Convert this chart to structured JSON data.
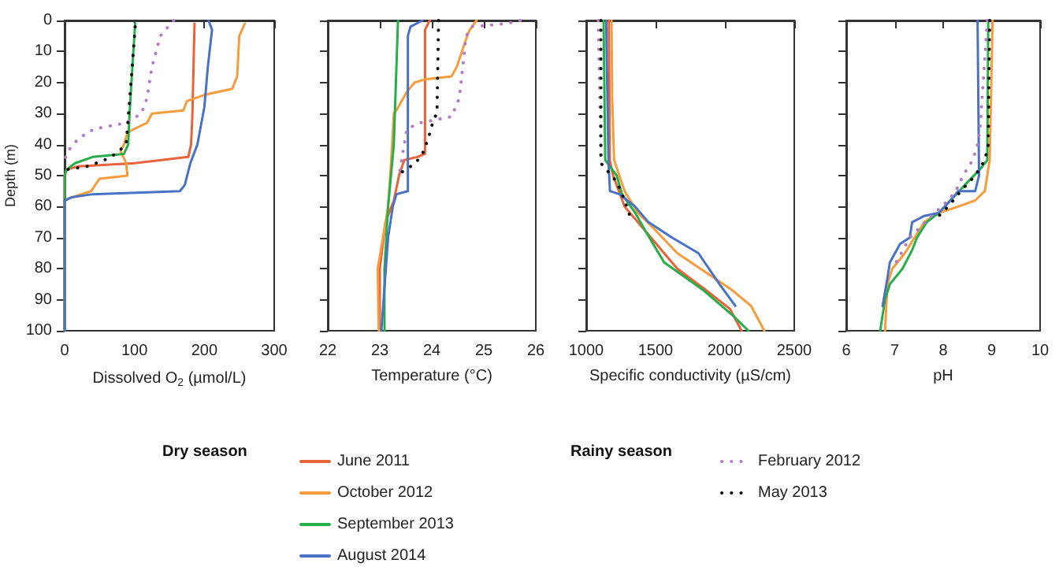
{
  "chart_data": [
    {
      "type": "line",
      "xlabel": "Dissolved O$_{2}$ (µmol/L)",
      "ylabel": "Depth (m)",
      "xlim": [
        0,
        300
      ],
      "xticks": [
        0,
        100,
        200,
        300
      ],
      "ylim": [
        100,
        0
      ],
      "yticks": [
        0,
        10,
        20,
        30,
        40,
        50,
        60,
        70,
        80,
        90,
        100
      ],
      "legend": "bottom",
      "annotations": [
        "Dry season",
        "Rainy season"
      ],
      "series": [
        {
          "name": "June 2011",
          "color": "#e8623a",
          "x": [
            186,
            185,
            183,
            181,
            177,
            100,
            20,
            3,
            0,
            0
          ],
          "values": [
            1,
            10,
            30,
            40,
            44,
            46,
            47,
            48,
            50,
            100
          ]
        },
        {
          "name": "October 2012",
          "color": "#f59c3c",
          "x": [
            258,
            250,
            247,
            240,
            200,
            175,
            170,
            125,
            118,
            90,
            85,
            80,
            88,
            90,
            50,
            38,
            10,
            0,
            0
          ],
          "values": [
            1,
            5,
            18,
            22,
            24,
            26,
            29,
            30,
            33,
            36,
            40,
            42,
            46,
            50,
            51,
            55,
            57,
            58,
            100
          ]
        },
        {
          "name": "September 2013",
          "color": "#27ae4a",
          "x": [
            101,
            97,
            93,
            91,
            85,
            40,
            15,
            3,
            0,
            0
          ],
          "values": [
            1,
            15,
            30,
            40,
            43,
            44,
            46,
            48,
            50,
            100
          ]
        },
        {
          "name": "August 2014",
          "color": "#4a72c4",
          "x": [
            206,
            211,
            205,
            200,
            190,
            180,
            172,
            165,
            40,
            10,
            0,
            0
          ],
          "values": [
            0,
            3,
            15,
            28,
            40,
            46,
            53,
            55,
            56,
            57,
            58,
            100
          ]
        },
        {
          "name": "February 2012",
          "color": "#b07cc6",
          "line_style": "dotted",
          "x": [
            156,
            137,
            125,
            118,
            110,
            88,
            42,
            20,
            5,
            0
          ],
          "values": [
            0,
            5,
            15,
            25,
            30,
            33,
            35,
            38,
            42,
            45
          ]
        },
        {
          "name": "May 2013",
          "color": "#111111",
          "line_style": "dotted",
          "x": [
            101,
            95,
            88,
            73,
            57,
            33,
            5
          ],
          "values": [
            2,
            20,
            40,
            43,
            45,
            47,
            48
          ]
        }
      ]
    },
    {
      "type": "line",
      "xlabel": "Temperature (°C)",
      "xlim": [
        22,
        26
      ],
      "xticks": [
        22,
        23,
        24,
        25,
        26
      ],
      "ylim": [
        100,
        0
      ],
      "yticks": [
        0,
        10,
        20,
        30,
        40,
        50,
        60,
        70,
        80,
        90,
        100
      ],
      "tick_labels": "x",
      "series": [
        {
          "color": "#e8623a",
          "x": [
            23.96,
            23.87,
            23.87,
            23.72,
            23.47,
            23.37,
            23.27,
            23.11,
            23.0,
            23.0
          ],
          "values": [
            0,
            3,
            43,
            44,
            45,
            50,
            58,
            65,
            80,
            100
          ]
        },
        {
          "color": "#f59c3c",
          "x": [
            24.86,
            24.73,
            24.68,
            24.48,
            24.38,
            23.87,
            23.67,
            23.52,
            23.32,
            23.27,
            23.22,
            23.16,
            22.96,
            22.98
          ],
          "values": [
            0,
            3,
            5,
            15,
            18,
            19,
            20,
            23,
            29,
            30,
            45,
            60,
            80,
            100
          ]
        },
        {
          "color": "#27ae4a",
          "x": [
            23.35,
            23.27,
            23.16,
            23.09,
            23.09
          ],
          "values": [
            0,
            40,
            60,
            80,
            100
          ]
        },
        {
          "color": "#4a72c4",
          "x": [
            23.82,
            23.59,
            23.54,
            23.54,
            23.32,
            23.25,
            23.16,
            23.03
          ],
          "values": [
            0,
            2,
            5,
            55,
            56,
            60,
            70,
            100
          ]
        },
        {
          "color": "#b07cc6",
          "line_style": "dotted",
          "x": [
            25.7,
            25.44,
            24.78,
            24.66,
            24.53,
            24.38,
            23.77,
            23.52,
            23.47,
            23.37
          ],
          "values": [
            0,
            1,
            2,
            5,
            25,
            31,
            33,
            35,
            40,
            50
          ]
        },
        {
          "color": "#111111",
          "line_style": "dotted",
          "x": [
            24.13,
            24.1,
            24.03,
            23.97,
            23.85,
            23.69,
            23.32
          ],
          "values": [
            0,
            30,
            32,
            36,
            42,
            46,
            50
          ]
        }
      ]
    },
    {
      "type": "line",
      "xlabel": "Specific conductivity (µS/cm)",
      "xlim": [
        1000,
        2500
      ],
      "xticks": [
        1000,
        1500,
        2000,
        2500
      ],
      "ylim": [
        100,
        0
      ],
      "yticks": [
        0,
        10,
        20,
        30,
        40,
        50,
        60,
        70,
        80,
        90,
        100
      ],
      "tick_labels": "x",
      "series": [
        {
          "color": "#e8623a",
          "x": [
            1163,
            1170,
            1194,
            1277,
            1467,
            1657,
            1866,
            2037,
            2120
          ],
          "values": [
            0,
            45,
            50,
            60,
            70,
            80,
            87,
            93,
            100
          ]
        },
        {
          "color": "#f59c3c",
          "x": [
            1182,
            1187,
            1201,
            1277,
            1372,
            1486,
            1657,
            1923,
            2055,
            2189,
            2284
          ],
          "values": [
            0,
            25,
            45,
            55,
            62,
            67,
            75,
            83,
            87,
            92,
            100
          ]
        },
        {
          "color": "#27ae4a",
          "x": [
            1125,
            1137,
            1220,
            1258,
            1353,
            1429,
            1562,
            1847,
            2055,
            2170
          ],
          "values": [
            0,
            45,
            50,
            56,
            62,
            68,
            78,
            87,
            95,
            100
          ]
        },
        {
          "color": "#4a72c4",
          "x": [
            1144,
            1160,
            1171,
            1239,
            1353,
            1448,
            1619,
            1809,
            1961,
            2075
          ],
          "values": [
            0,
            45,
            55,
            56,
            60,
            65,
            70,
            75,
            85,
            92
          ]
        },
        {
          "color": "#b07cc6",
          "line_style": "dotted",
          "x": [
            1087,
            1106
          ],
          "values": [
            0,
            45
          ]
        },
        {
          "color": "#111111",
          "line_style": "dotted",
          "x": [
            1106,
            1106,
            1220,
            1277,
            1315
          ],
          "values": [
            0,
            46,
            52,
            58,
            63
          ]
        }
      ]
    },
    {
      "type": "line",
      "xlabel": "pH",
      "xlim": [
        6,
        10
      ],
      "xticks": [
        6,
        7,
        8,
        9,
        10
      ],
      "ylim": [
        100,
        0
      ],
      "yticks": [
        0,
        10,
        20,
        30,
        40,
        50,
        60,
        70,
        80,
        90,
        100
      ],
      "tick_labels": "x",
      "series": [
        {
          "color": "#f59c3c",
          "x": [
            9.02,
            8.96,
            8.86,
            8.66,
            8.31,
            7.91,
            7.61,
            7.41,
            7.21,
            6.95,
            6.85,
            6.8
          ],
          "values": [
            0,
            45,
            55,
            58,
            60,
            62,
            65,
            70,
            75,
            80,
            85,
            100
          ]
        },
        {
          "color": "#27ae4a",
          "x": [
            8.93,
            8.91,
            8.76,
            8.51,
            8.21,
            7.91,
            7.66,
            7.46,
            7.36,
            7.16,
            6.9,
            6.8,
            6.7
          ],
          "values": [
            0,
            45,
            48,
            52,
            57,
            62,
            65,
            70,
            74,
            80,
            85,
            90,
            100
          ]
        },
        {
          "color": "#4a72c4",
          "x": [
            8.71,
            8.74,
            8.66,
            8.31,
            8.21,
            7.91,
            7.61,
            7.36,
            7.31,
            7.11,
            6.9,
            6.85,
            6.75
          ],
          "values": [
            0,
            50,
            55,
            55,
            57,
            62,
            63,
            65,
            70,
            72,
            78,
            83,
            92
          ]
        },
        {
          "color": "#b07cc6",
          "line_style": "dotted",
          "x": [
            8.91,
            8.76,
            8.71,
            8.61,
            8.41,
            8.26,
            8.1,
            7.76,
            7.31,
            7.1,
            6.95
          ],
          "values": [
            0,
            35,
            40,
            45,
            50,
            55,
            58,
            63,
            70,
            76,
            80
          ]
        },
        {
          "color": "#111111",
          "line_style": "dotted",
          "x": [
            8.96,
            8.93,
            8.86,
            8.66,
            8.36,
            8.21,
            8.1,
            7.91
          ],
          "values": [
            0,
            40,
            45,
            50,
            55,
            58,
            60,
            63
          ]
        }
      ]
    }
  ]
}
